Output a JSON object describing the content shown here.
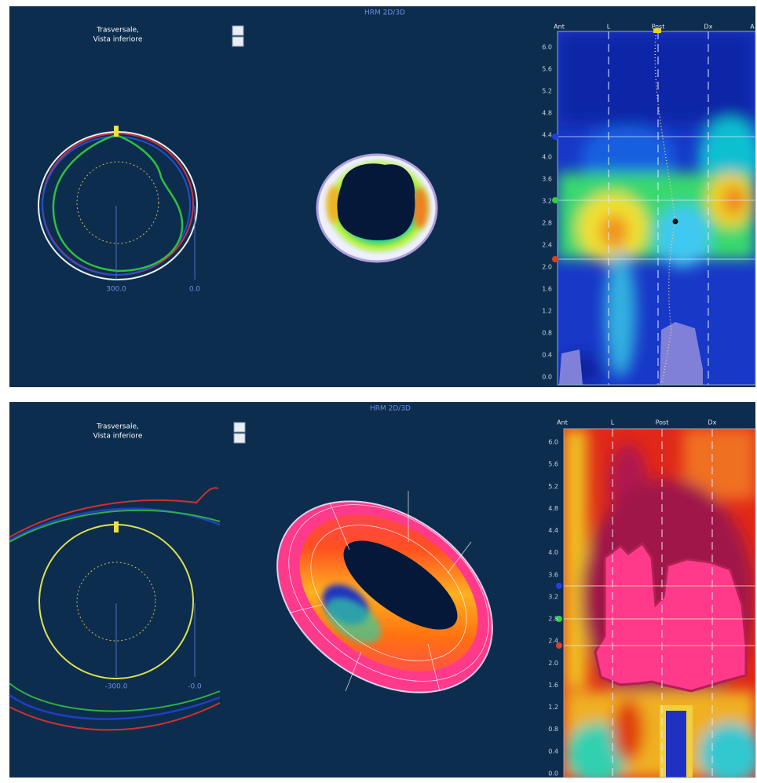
{
  "panels": [
    {
      "title": "HRM 2D/3D",
      "view_label": [
        "Trasversale,",
        "Vista inferiore"
      ],
      "scale_labels": [
        "300.0",
        "0.0"
      ],
      "map_axis_labels": [
        "Ant",
        "L",
        "Post",
        "Dx",
        "A"
      ],
      "map_yticks": [
        "6.0",
        "5.6",
        "5.2",
        "4.8",
        "4.4",
        "4.0",
        "3.6",
        "3.2",
        "2.8",
        "2.4",
        "2.0",
        "1.6",
        "1.2",
        "0.8",
        "0.4",
        "0.0"
      ]
    },
    {
      "title": "HRM 2D/3D",
      "view_label": [
        "Trasversale,",
        "Vista inferiore"
      ],
      "scale_labels": [
        "-300.0",
        "-0.0"
      ],
      "map_axis_labels": [
        "Ant",
        "L",
        "Post",
        "Dx"
      ],
      "map_yticks": [
        "6.0",
        "5.6",
        "5.2",
        "4.8",
        "4.4",
        "4.0",
        "3.6",
        "3.2",
        "2.8",
        "2.4",
        "2.0",
        "1.6",
        "1.2",
        "0.8",
        "0.4",
        "0.0"
      ]
    }
  ]
}
